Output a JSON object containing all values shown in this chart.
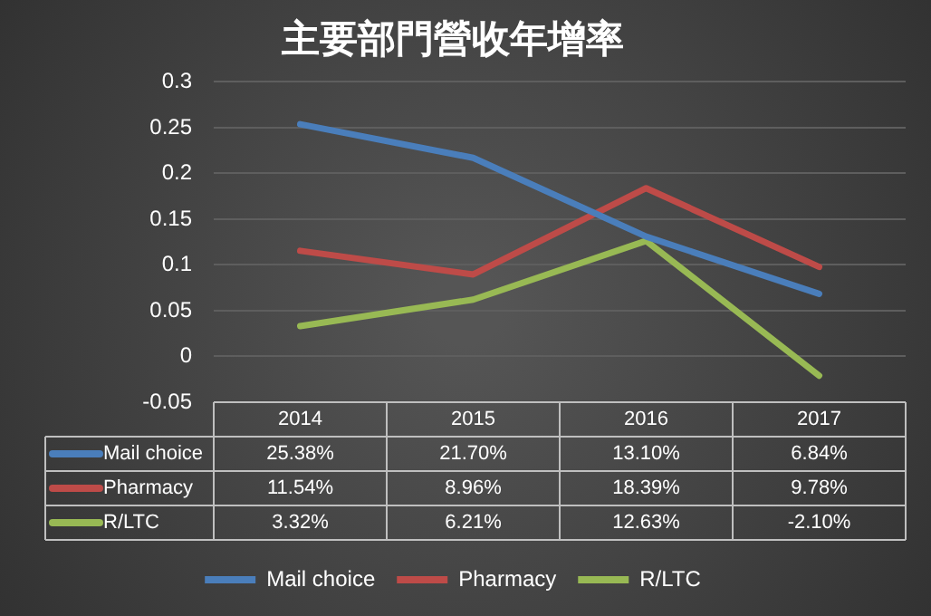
{
  "chart_data": {
    "type": "line",
    "title": "主要部門營收年增率",
    "categories": [
      "2014",
      "2015",
      "2016",
      "2017"
    ],
    "series": [
      {
        "name": "Mail choice",
        "color": "#4a7ebb",
        "values": [
          0.2538,
          0.217,
          0.131,
          0.0684
        ],
        "value_labels": [
          "25.38%",
          "21.70%",
          "13.10%",
          "6.84%"
        ]
      },
      {
        "name": "Pharmacy",
        "color": "#be4b48",
        "values": [
          0.1154,
          0.0896,
          0.1839,
          0.0978
        ],
        "value_labels": [
          "11.54%",
          "8.96%",
          "18.39%",
          "9.78%"
        ]
      },
      {
        "name": "R/LTC",
        "color": "#98b954",
        "values": [
          0.0332,
          0.0621,
          0.1263,
          -0.021
        ],
        "value_labels": [
          "3.32%",
          "6.21%",
          "12.63%",
          "-2.10%"
        ]
      }
    ],
    "ylim": [
      -0.05,
      0.3
    ],
    "yticks": [
      -0.05,
      0,
      0.05,
      0.1,
      0.15,
      0.2,
      0.25,
      0.3
    ],
    "grid": "y",
    "legend": "bottom",
    "marker": "none",
    "line_style": "solid"
  }
}
